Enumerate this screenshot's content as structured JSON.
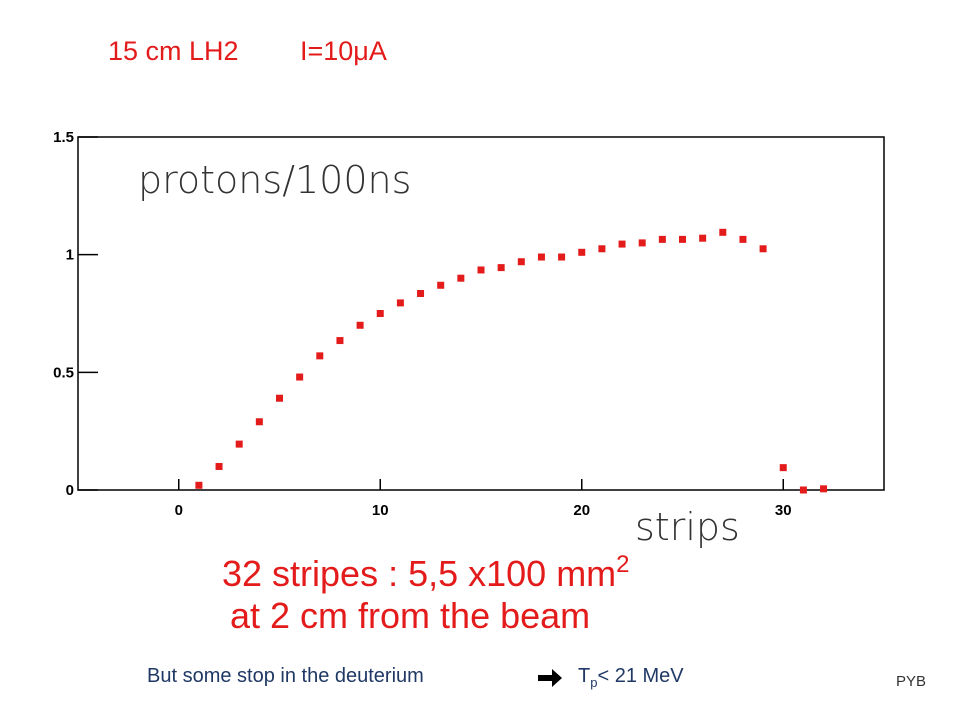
{
  "chart_data": {
    "type": "scatter",
    "title_left": "15 cm LH2",
    "title_right": "I=10μA",
    "ylabel": "protons/100ns",
    "xlabel": "strips",
    "color": "#e31b1b",
    "x": [
      1,
      2,
      3,
      4,
      5,
      6,
      7,
      8,
      9,
      10,
      11,
      12,
      13,
      14,
      15,
      16,
      17,
      18,
      19,
      20,
      21,
      22,
      23,
      24,
      25,
      26,
      27,
      28,
      29,
      30,
      31,
      32
    ],
    "values": [
      0.02,
      0.1,
      0.195,
      0.29,
      0.39,
      0.48,
      0.57,
      0.635,
      0.7,
      0.75,
      0.795,
      0.835,
      0.87,
      0.9,
      0.935,
      0.945,
      0.97,
      0.99,
      0.99,
      1.01,
      1.025,
      1.045,
      1.05,
      1.065,
      1.065,
      1.07,
      1.095,
      1.065,
      1.025,
      0.095,
      0,
      0.005
    ],
    "xlim": [
      -5,
      35
    ],
    "ylim": [
      0,
      1.5
    ],
    "xticks": [
      0,
      10,
      20,
      30
    ],
    "yticks": [
      0,
      0.5,
      1,
      1.5
    ]
  },
  "slide": {
    "caption_line1": "32 stripes : 5,5 x100 mm",
    "caption_line1_sup": "2",
    "caption_line2": "at 2 cm from the beam",
    "note_text": "But some  stop  in  the deuterium",
    "note_symbol": "T",
    "note_sub": "p",
    "note_tail": "< 21 MeV",
    "author": "PYB"
  }
}
